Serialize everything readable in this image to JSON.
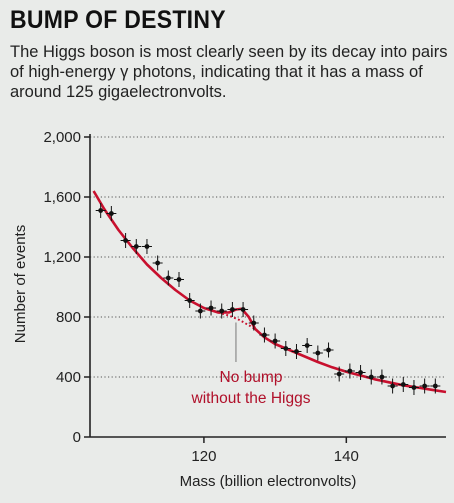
{
  "header": {
    "title": "BUMP OF DESTINY",
    "subtitle": "The Higgs boson is most clearly seen by its decay into pairs of high-energy γ photons, indicating that it has a mass of around 125 gigaelectronvolts."
  },
  "chart_data": {
    "type": "scatter",
    "title": "",
    "xlabel": "Mass (billion electronvolts)",
    "ylabel": "Number of events",
    "xlim": [
      104,
      154
    ],
    "ylim": [
      0,
      2000
    ],
    "xticks": [
      120,
      140
    ],
    "yticks": [
      0,
      400,
      800,
      1200,
      1600,
      2000
    ],
    "ytick_labels": [
      "0",
      "400",
      "800",
      "1,200",
      "1,600",
      "2,000"
    ],
    "grid": "horizontal dotted",
    "points": [
      {
        "x": 105.5,
        "y": 1510
      },
      {
        "x": 107,
        "y": 1490
      },
      {
        "x": 109,
        "y": 1310
      },
      {
        "x": 110.5,
        "y": 1270
      },
      {
        "x": 112,
        "y": 1270
      },
      {
        "x": 113.5,
        "y": 1160
      },
      {
        "x": 115,
        "y": 1060
      },
      {
        "x": 116.5,
        "y": 1050
      },
      {
        "x": 118,
        "y": 910
      },
      {
        "x": 119.5,
        "y": 840
      },
      {
        "x": 121,
        "y": 860
      },
      {
        "x": 122.5,
        "y": 840
      },
      {
        "x": 124,
        "y": 850
      },
      {
        "x": 125.5,
        "y": 850
      },
      {
        "x": 127,
        "y": 760
      },
      {
        "x": 128.5,
        "y": 680
      },
      {
        "x": 130,
        "y": 640
      },
      {
        "x": 131.5,
        "y": 590
      },
      {
        "x": 133,
        "y": 570
      },
      {
        "x": 134.5,
        "y": 610
      },
      {
        "x": 136,
        "y": 560
      },
      {
        "x": 137.5,
        "y": 580
      },
      {
        "x": 139,
        "y": 420
      },
      {
        "x": 140.5,
        "y": 440
      },
      {
        "x": 142,
        "y": 430
      },
      {
        "x": 143.5,
        "y": 400
      },
      {
        "x": 145,
        "y": 400
      },
      {
        "x": 146.5,
        "y": 340
      },
      {
        "x": 148,
        "y": 350
      },
      {
        "x": 149.5,
        "y": 330
      },
      {
        "x": 151,
        "y": 340
      },
      {
        "x": 152.5,
        "y": 340
      }
    ],
    "error_bar": 50,
    "fit_with_higgs": [
      [
        104.5,
        1640
      ],
      [
        106,
        1520
      ],
      [
        108,
        1380
      ],
      [
        110,
        1260
      ],
      [
        112,
        1150
      ],
      [
        114,
        1060
      ],
      [
        116,
        980
      ],
      [
        118,
        910
      ],
      [
        120,
        860
      ],
      [
        122,
        830
      ],
      [
        123.5,
        830
      ],
      [
        124.5,
        850
      ],
      [
        125.3,
        855
      ],
      [
        126.3,
        800
      ],
      [
        127.2,
        720
      ],
      [
        128.5,
        665
      ],
      [
        130,
        620
      ],
      [
        132,
        580
      ],
      [
        134,
        540
      ],
      [
        136,
        500
      ],
      [
        138,
        465
      ],
      [
        140,
        435
      ],
      [
        142,
        410
      ],
      [
        144,
        385
      ],
      [
        146,
        365
      ],
      [
        148,
        345
      ],
      [
        150,
        330
      ],
      [
        152,
        315
      ],
      [
        154,
        300
      ]
    ],
    "fit_without_higgs": [
      [
        122,
        830
      ],
      [
        123.5,
        810
      ],
      [
        125,
        780
      ],
      [
        126.5,
        740
      ],
      [
        127.5,
        710
      ]
    ],
    "annotation": {
      "line1": "No bump",
      "line2": "without the Higgs",
      "points_to_x": 124.5,
      "points_to_y": 790
    },
    "colors": {
      "fit": "#c8102e",
      "points": "#111111",
      "annotation": "#b0102a"
    }
  }
}
